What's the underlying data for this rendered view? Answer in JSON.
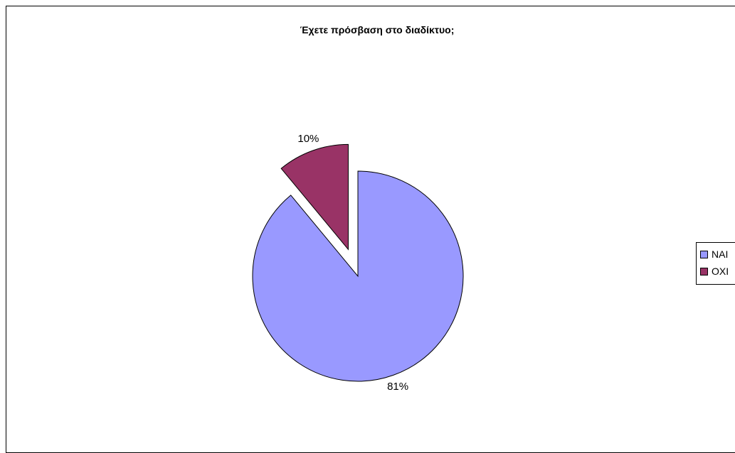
{
  "chart_data": {
    "type": "pie",
    "title": "Έχετε πρόσβαση στο διαδίκτυο;",
    "categories": [
      "ΝΑΙ",
      "ΟΧΙ"
    ],
    "values": [
      81,
      10
    ],
    "value_labels": [
      "81%",
      "10%"
    ],
    "colors": [
      "#9999ff",
      "#993366"
    ],
    "exploded": [
      false,
      true
    ],
    "legend": "right",
    "grid": false
  }
}
